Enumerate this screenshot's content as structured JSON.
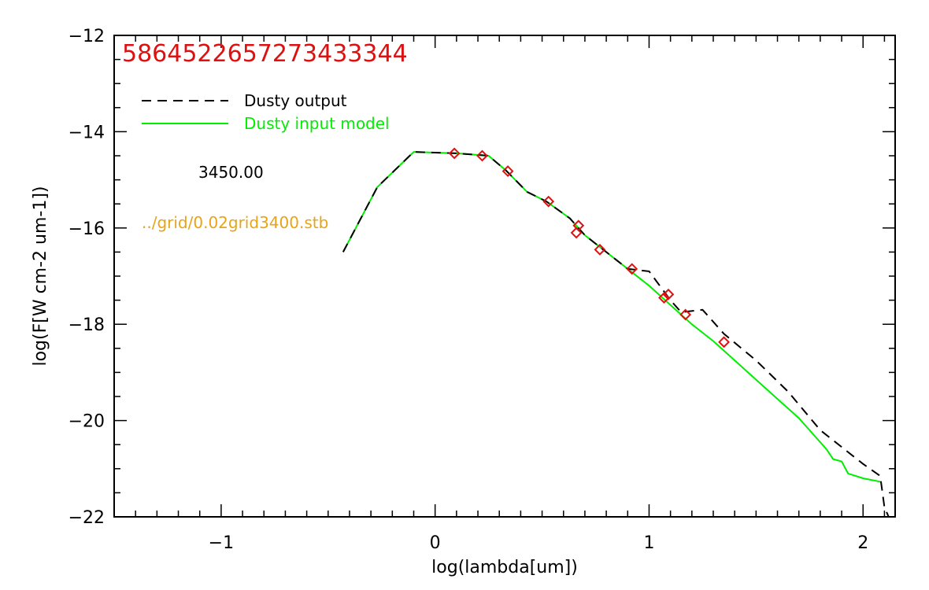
{
  "chart_data": {
    "type": "line",
    "title": "5864522657273433344",
    "xlabel": "log(lambda[um])",
    "ylabel": "log(F[W cm-2 um-1])",
    "xlim": [
      -1.5,
      2.15
    ],
    "ylim": [
      -22,
      -12
    ],
    "grid": false,
    "x_ticks": [
      {
        "value": -1,
        "label": "−1"
      },
      {
        "value": 0,
        "label": "0"
      },
      {
        "value": 1,
        "label": "1"
      },
      {
        "value": 2,
        "label": "2"
      }
    ],
    "y_ticks": [
      {
        "value": -12,
        "label": "−12"
      },
      {
        "value": -14,
        "label": "−14"
      },
      {
        "value": -16,
        "label": "−16"
      },
      {
        "value": -18,
        "label": "−18"
      },
      {
        "value": -20,
        "label": "−20"
      },
      {
        "value": -22,
        "label": "−22"
      }
    ],
    "legend": {
      "placement": "top-left",
      "entries": [
        {
          "label": "Dusty output",
          "color": "#000000",
          "style": "dashed"
        },
        {
          "label": "Dusty input model",
          "color": "#00ee00",
          "style": "solid"
        }
      ]
    },
    "annotations": [
      {
        "text": "3450.00",
        "color": "#000000"
      },
      {
        "text": "../grid/0.02grid3400.stb",
        "color": "#e8a317"
      }
    ],
    "series": [
      {
        "name": "Dusty input model",
        "color": "#00ee00",
        "style": "solid",
        "points": [
          [
            -0.43,
            -16.5
          ],
          [
            -0.27,
            -15.15
          ],
          [
            -0.1,
            -14.42
          ],
          [
            0.1,
            -14.45
          ],
          [
            0.25,
            -14.5
          ],
          [
            0.33,
            -14.8
          ],
          [
            0.43,
            -15.25
          ],
          [
            0.52,
            -15.45
          ],
          [
            0.63,
            -15.8
          ],
          [
            0.7,
            -16.15
          ],
          [
            0.8,
            -16.5
          ],
          [
            0.9,
            -16.85
          ],
          [
            1.0,
            -17.2
          ],
          [
            1.1,
            -17.6
          ],
          [
            1.2,
            -18.0
          ],
          [
            1.3,
            -18.35
          ],
          [
            1.4,
            -18.75
          ],
          [
            1.5,
            -19.15
          ],
          [
            1.6,
            -19.55
          ],
          [
            1.7,
            -19.95
          ],
          [
            1.78,
            -20.35
          ],
          [
            1.83,
            -20.6
          ],
          [
            1.86,
            -20.8
          ],
          [
            1.9,
            -20.85
          ],
          [
            1.93,
            -21.1
          ],
          [
            2.0,
            -21.2
          ],
          [
            2.08,
            -21.27
          ]
        ]
      },
      {
        "name": "Dusty output",
        "color": "#000000",
        "style": "dashed",
        "points": [
          [
            -0.43,
            -16.5
          ],
          [
            -0.27,
            -15.15
          ],
          [
            -0.1,
            -14.42
          ],
          [
            0.1,
            -14.45
          ],
          [
            0.25,
            -14.5
          ],
          [
            0.33,
            -14.8
          ],
          [
            0.43,
            -15.25
          ],
          [
            0.52,
            -15.45
          ],
          [
            0.63,
            -15.8
          ],
          [
            0.7,
            -16.15
          ],
          [
            0.8,
            -16.5
          ],
          [
            0.9,
            -16.85
          ],
          [
            1.0,
            -16.9
          ],
          [
            1.05,
            -17.2
          ],
          [
            1.1,
            -17.5
          ],
          [
            1.15,
            -17.75
          ],
          [
            1.25,
            -17.7
          ],
          [
            1.35,
            -18.2
          ],
          [
            1.5,
            -18.75
          ],
          [
            1.65,
            -19.4
          ],
          [
            1.8,
            -20.2
          ],
          [
            1.9,
            -20.55
          ],
          [
            2.0,
            -20.9
          ],
          [
            2.08,
            -21.15
          ],
          [
            2.1,
            -21.8
          ],
          [
            2.12,
            -22.0
          ]
        ]
      },
      {
        "name": "observed photometry",
        "color": "#dd1111",
        "style": "diamond",
        "points": [
          [
            0.09,
            -14.45
          ],
          [
            0.22,
            -14.5
          ],
          [
            0.34,
            -14.82
          ],
          [
            0.53,
            -15.45
          ],
          [
            0.66,
            -16.1
          ],
          [
            0.67,
            -15.95
          ],
          [
            0.77,
            -16.45
          ],
          [
            0.92,
            -16.85
          ],
          [
            1.07,
            -17.45
          ],
          [
            1.09,
            -17.38
          ],
          [
            1.17,
            -17.8
          ],
          [
            1.35,
            -18.37
          ]
        ]
      }
    ]
  }
}
